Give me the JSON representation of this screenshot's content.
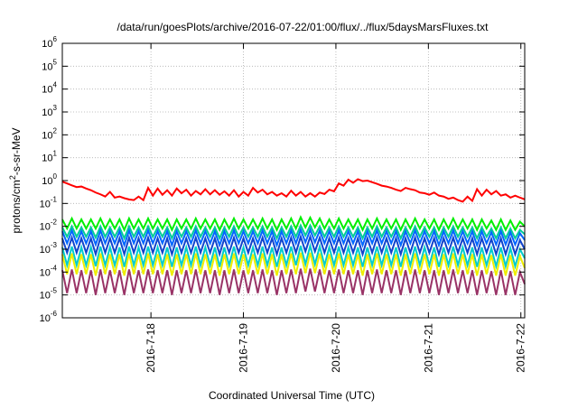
{
  "chart_data": {
    "type": "line",
    "title": "/data/run/goesPlots/archive/2016-07-22/01:00/flux/../flux/5daysMarsFluxes.txt",
    "xlabel": "Coordinated Universal Time (UTC)",
    "ylabel": {
      "prefix": "protons/cm",
      "sup": "2",
      "suffix": "-s-sr-MeV"
    },
    "x_ticks": [
      "2016-7-18",
      "2016-7-19",
      "2016-7-20",
      "2016-7-21",
      "2016-7-22"
    ],
    "x_range": [
      "2016-07-17 01:00",
      "2016-07-22 01:00"
    ],
    "y_scale": "log",
    "ylim": [
      1e-06,
      1000000.0
    ],
    "y_ticks": [
      {
        "base": "10",
        "exp": "-6"
      },
      {
        "base": "10",
        "exp": "-5"
      },
      {
        "base": "10",
        "exp": "-4"
      },
      {
        "base": "10",
        "exp": "-3"
      },
      {
        "base": "10",
        "exp": "-2"
      },
      {
        "base": "10",
        "exp": "-1"
      },
      {
        "base": "10",
        "exp": "0"
      },
      {
        "base": "10",
        "exp": "1"
      },
      {
        "base": "10",
        "exp": "2"
      },
      {
        "base": "10",
        "exp": "3"
      },
      {
        "base": "10",
        "exp": "4"
      },
      {
        "base": "10",
        "exp": "5"
      },
      {
        "base": "10",
        "exp": "6"
      }
    ],
    "grid": true,
    "series": [
      {
        "color": "#ff0000",
        "values": [
          0.9,
          0.75,
          0.62,
          0.52,
          0.55,
          0.45,
          0.38,
          0.3,
          0.25,
          0.2,
          0.32,
          0.18,
          0.2,
          0.17,
          0.15,
          0.14,
          0.2,
          0.14,
          0.48,
          0.22,
          0.45,
          0.24,
          0.38,
          0.22,
          0.45,
          0.28,
          0.4,
          0.22,
          0.35,
          0.25,
          0.42,
          0.25,
          0.38,
          0.24,
          0.34,
          0.22,
          0.38,
          0.2,
          0.32,
          0.22,
          0.48,
          0.3,
          0.4,
          0.25,
          0.32,
          0.22,
          0.28,
          0.2,
          0.36,
          0.22,
          0.32,
          0.2,
          0.28,
          0.2,
          0.3,
          0.26,
          0.4,
          0.34,
          0.75,
          0.6,
          1.1,
          0.8,
          1.15,
          0.95,
          1.0,
          0.85,
          0.72,
          0.6,
          0.55,
          0.48,
          0.4,
          0.35,
          0.48,
          0.42,
          0.38,
          0.3,
          0.28,
          0.24,
          0.3,
          0.22,
          0.2,
          0.16,
          0.18,
          0.14,
          0.12,
          0.2,
          0.13,
          0.42,
          0.22,
          0.4,
          0.25,
          0.35,
          0.22,
          0.25,
          0.18,
          0.22,
          0.18,
          0.15
        ]
      },
      {
        "color": "#00ee00",
        "values": [
          0.02,
          0.008,
          0.022,
          0.008,
          0.02,
          0.008,
          0.02,
          0.008,
          0.022,
          0.008,
          0.02,
          0.008,
          0.02,
          0.007,
          0.022,
          0.008,
          0.02,
          0.008,
          0.022,
          0.008,
          0.02,
          0.008,
          0.02,
          0.007,
          0.02,
          0.008,
          0.02,
          0.008,
          0.022,
          0.008,
          0.02,
          0.008,
          0.02,
          0.007,
          0.02,
          0.008,
          0.022,
          0.008,
          0.02,
          0.008,
          0.02,
          0.008,
          0.022,
          0.008,
          0.02,
          0.007,
          0.02,
          0.008,
          0.022,
          0.008,
          0.025,
          0.009,
          0.024,
          0.009,
          0.022,
          0.008,
          0.02,
          0.008,
          0.022,
          0.008,
          0.02,
          0.008,
          0.02,
          0.007,
          0.02,
          0.008,
          0.022,
          0.008,
          0.02,
          0.008,
          0.02,
          0.007,
          0.02,
          0.008,
          0.022,
          0.008,
          0.02,
          0.008,
          0.02,
          0.007,
          0.02,
          0.008,
          0.022,
          0.008,
          0.02,
          0.008,
          0.02,
          0.007,
          0.02,
          0.008,
          0.018,
          0.007,
          0.02,
          0.007,
          0.018,
          0.007,
          0.016,
          0.01
        ]
      },
      {
        "color": "#00cc99",
        "values": [
          0.009,
          0.0035,
          0.01,
          0.0035,
          0.009,
          0.0035,
          0.009,
          0.0032,
          0.01,
          0.0035,
          0.009,
          0.0035,
          0.009,
          0.003,
          0.01,
          0.0035,
          0.009,
          0.0035,
          0.01,
          0.0035,
          0.009,
          0.0035,
          0.009,
          0.003,
          0.009,
          0.0035,
          0.009,
          0.0035,
          0.01,
          0.0035,
          0.009,
          0.0035,
          0.009,
          0.003,
          0.009,
          0.0035,
          0.01,
          0.0035,
          0.009,
          0.0035,
          0.009,
          0.0035,
          0.01,
          0.0035,
          0.009,
          0.003,
          0.009,
          0.0035,
          0.01,
          0.0035,
          0.011,
          0.004,
          0.011,
          0.004,
          0.01,
          0.0035,
          0.009,
          0.0035,
          0.01,
          0.0035,
          0.009,
          0.0035,
          0.009,
          0.003,
          0.009,
          0.0035,
          0.01,
          0.0035,
          0.009,
          0.0035,
          0.009,
          0.003,
          0.009,
          0.0035,
          0.01,
          0.0035,
          0.009,
          0.0035,
          0.009,
          0.003,
          0.009,
          0.0035,
          0.01,
          0.0035,
          0.009,
          0.0035,
          0.009,
          0.003,
          0.009,
          0.0035,
          0.008,
          0.003,
          0.009,
          0.003,
          0.008,
          0.003,
          0.007,
          0.0045
        ]
      },
      {
        "color": "#0066ff",
        "values": [
          0.006,
          0.0018,
          0.0065,
          0.0018,
          0.006,
          0.0018,
          0.006,
          0.0016,
          0.0065,
          0.0018,
          0.006,
          0.0018,
          0.006,
          0.0015,
          0.0065,
          0.0018,
          0.006,
          0.0018,
          0.0065,
          0.0018,
          0.006,
          0.0018,
          0.006,
          0.0015,
          0.006,
          0.0018,
          0.006,
          0.0018,
          0.0065,
          0.0018,
          0.006,
          0.0018,
          0.006,
          0.0015,
          0.006,
          0.0018,
          0.0065,
          0.0018,
          0.006,
          0.0018,
          0.006,
          0.0018,
          0.0065,
          0.0018,
          0.006,
          0.0015,
          0.006,
          0.0018,
          0.0065,
          0.0018,
          0.007,
          0.002,
          0.007,
          0.002,
          0.0065,
          0.0018,
          0.006,
          0.0018,
          0.0065,
          0.0018,
          0.006,
          0.0018,
          0.006,
          0.0015,
          0.006,
          0.0018,
          0.0065,
          0.0018,
          0.006,
          0.0018,
          0.006,
          0.0015,
          0.006,
          0.0018,
          0.0065,
          0.0018,
          0.006,
          0.0018,
          0.006,
          0.0015,
          0.006,
          0.0018,
          0.0065,
          0.0018,
          0.006,
          0.0018,
          0.006,
          0.0015,
          0.006,
          0.0018,
          0.0055,
          0.0016,
          0.006,
          0.0016,
          0.0055,
          0.0016,
          0.005,
          0.0025
        ]
      },
      {
        "color": "#1144cc",
        "values": [
          0.003,
          0.0007,
          0.0032,
          0.0007,
          0.003,
          0.0007,
          0.003,
          0.0006,
          0.0032,
          0.0007,
          0.003,
          0.0007,
          0.003,
          0.0006,
          0.0032,
          0.0007,
          0.003,
          0.0007,
          0.0032,
          0.0007,
          0.003,
          0.0007,
          0.003,
          0.0006,
          0.003,
          0.0007,
          0.003,
          0.0007,
          0.0032,
          0.0007,
          0.003,
          0.0007,
          0.003,
          0.0006,
          0.003,
          0.0007,
          0.0032,
          0.0007,
          0.003,
          0.0007,
          0.003,
          0.0007,
          0.0032,
          0.0007,
          0.003,
          0.0006,
          0.003,
          0.0007,
          0.0032,
          0.0007,
          0.0035,
          0.0008,
          0.0035,
          0.0008,
          0.0032,
          0.0007,
          0.003,
          0.0007,
          0.0032,
          0.0007,
          0.003,
          0.0007,
          0.003,
          0.0006,
          0.003,
          0.0007,
          0.0032,
          0.0007,
          0.003,
          0.0007,
          0.003,
          0.0006,
          0.003,
          0.0007,
          0.0032,
          0.0007,
          0.003,
          0.0007,
          0.003,
          0.0006,
          0.003,
          0.0007,
          0.0032,
          0.0007,
          0.003,
          0.0007,
          0.003,
          0.0006,
          0.003,
          0.0007,
          0.0028,
          0.0006,
          0.003,
          0.0006,
          0.0028,
          0.0006,
          0.0025,
          0.001
        ]
      },
      {
        "color": "#00cccc",
        "values": [
          0.0012,
          0.0002,
          0.0013,
          0.0002,
          0.0012,
          0.0002,
          0.0012,
          0.00018,
          0.0013,
          0.0002,
          0.0012,
          0.0002,
          0.0012,
          0.00017,
          0.0013,
          0.0002,
          0.0012,
          0.0002,
          0.0013,
          0.0002,
          0.0012,
          0.0002,
          0.0012,
          0.00017,
          0.0012,
          0.0002,
          0.0012,
          0.0002,
          0.0013,
          0.0002,
          0.0012,
          0.0002,
          0.0012,
          0.00017,
          0.0012,
          0.0002,
          0.0013,
          0.0002,
          0.0012,
          0.0002,
          0.0012,
          0.0002,
          0.0013,
          0.0002,
          0.0012,
          0.00017,
          0.0012,
          0.0002,
          0.0013,
          0.0002,
          0.0014,
          0.00022,
          0.0014,
          0.00022,
          0.0013,
          0.0002,
          0.0012,
          0.0002,
          0.0013,
          0.0002,
          0.0012,
          0.0002,
          0.0012,
          0.00017,
          0.0012,
          0.0002,
          0.0013,
          0.0002,
          0.0012,
          0.0002,
          0.0012,
          0.00017,
          0.0012,
          0.0002,
          0.0013,
          0.0002,
          0.0012,
          0.0002,
          0.0012,
          0.00017,
          0.0012,
          0.0002,
          0.0013,
          0.0002,
          0.0012,
          0.0002,
          0.0012,
          0.00017,
          0.0012,
          0.0002,
          0.0011,
          0.00018,
          0.0012,
          0.00018,
          0.0011,
          0.00018,
          0.001,
          0.0004
        ]
      },
      {
        "color": "#eeee00",
        "values": [
          0.0006,
          8e-05,
          0.00065,
          8e-05,
          0.0006,
          8e-05,
          0.0006,
          7e-05,
          0.00065,
          8e-05,
          0.0006,
          8e-05,
          0.0006,
          7e-05,
          0.00065,
          8e-05,
          0.0006,
          8e-05,
          0.00065,
          8e-05,
          0.0006,
          8e-05,
          0.0006,
          7e-05,
          0.0006,
          8e-05,
          0.0006,
          8e-05,
          0.00065,
          8e-05,
          0.0006,
          8e-05,
          0.0006,
          7e-05,
          0.0006,
          8e-05,
          0.00065,
          8e-05,
          0.0006,
          8e-05,
          0.0006,
          8e-05,
          0.00065,
          8e-05,
          0.0006,
          7e-05,
          0.0006,
          8e-05,
          0.00065,
          8e-05,
          0.0007,
          9e-05,
          0.0007,
          9e-05,
          0.00065,
          8e-05,
          0.0006,
          8e-05,
          0.00065,
          8e-05,
          0.0006,
          8e-05,
          0.0006,
          7e-05,
          0.0006,
          8e-05,
          0.00065,
          8e-05,
          0.0006,
          8e-05,
          0.0006,
          7e-05,
          0.0006,
          8e-05,
          0.00065,
          8e-05,
          0.0006,
          8e-05,
          0.0006,
          7e-05,
          0.0006,
          8e-05,
          0.00065,
          8e-05,
          0.0006,
          8e-05,
          0.0006,
          7e-05,
          0.0006,
          8e-05,
          0.00055,
          7e-05,
          0.0006,
          7e-05,
          0.00055,
          7e-05,
          0.0005,
          0.00015
        ]
      },
      {
        "color": "#993366",
        "values": [
          0.00012,
          1.2e-05,
          0.00013,
          1.2e-05,
          0.00012,
          1.2e-05,
          0.00012,
          1e-05,
          0.00013,
          1.2e-05,
          0.00012,
          1.2e-05,
          0.00012,
          1e-05,
          0.00013,
          1.2e-05,
          0.00012,
          1.2e-05,
          0.00013,
          1.2e-05,
          0.00012,
          1.2e-05,
          0.00012,
          1e-05,
          0.00012,
          1.2e-05,
          0.00012,
          1.2e-05,
          0.00013,
          1.2e-05,
          0.00012,
          1.2e-05,
          0.00012,
          1e-05,
          0.00012,
          1.2e-05,
          0.00013,
          1.2e-05,
          0.00012,
          1.2e-05,
          0.00012,
          1.2e-05,
          0.00013,
          1.2e-05,
          0.00012,
          1e-05,
          0.00012,
          1.2e-05,
          0.00013,
          1.2e-05,
          0.00014,
          1.4e-05,
          0.00014,
          1.4e-05,
          0.00013,
          1.2e-05,
          0.00012,
          1.2e-05,
          0.00013,
          1.2e-05,
          0.00012,
          1.2e-05,
          0.00012,
          1e-05,
          0.00012,
          1.2e-05,
          0.00013,
          1.2e-05,
          0.00012,
          1.2e-05,
          0.00012,
          1e-05,
          0.00012,
          1.2e-05,
          0.00013,
          1.2e-05,
          0.00012,
          1.2e-05,
          0.00012,
          1e-05,
          0.00012,
          1.2e-05,
          0.00013,
          1.2e-05,
          0.00012,
          1.2e-05,
          0.00012,
          1e-05,
          0.00012,
          1.2e-05,
          0.00011,
          1e-05,
          0.00012,
          1e-05,
          0.00011,
          1e-05,
          0.0001,
          3e-05
        ]
      }
    ]
  }
}
